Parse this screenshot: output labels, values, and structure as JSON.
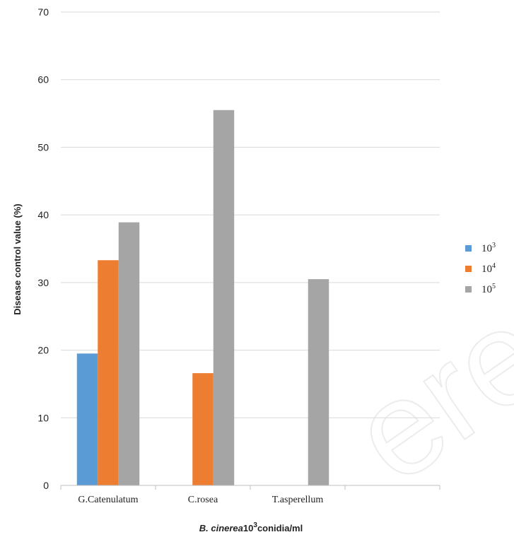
{
  "chart_data": {
    "type": "bar",
    "categories": [
      "G.Catenulatum",
      "C.rosea",
      "T.asperellum"
    ],
    "series": [
      {
        "name": "10^3",
        "base": "10",
        "exp": "3",
        "color": "#5b9bd5",
        "values": [
          19.5,
          0,
          0
        ]
      },
      {
        "name": "10^4",
        "base": "10",
        "exp": "4",
        "color": "#ed7d31",
        "values": [
          33.3,
          16.6,
          0
        ]
      },
      {
        "name": "10^5",
        "base": "10",
        "exp": "5",
        "color": "#a5a5a5",
        "values": [
          38.9,
          55.5,
          30.5
        ]
      }
    ],
    "ylabel": "Disease control value (%)",
    "xlabel": {
      "italic": "B. cinerea",
      "base": "10",
      "exp": "3",
      "suffix": "conidia/ml"
    },
    "ylim": [
      0,
      70
    ],
    "yticks": [
      "0",
      "10",
      "20",
      "30",
      "40",
      "50",
      "60",
      "70"
    ],
    "grid": true,
    "legend_position": "right"
  }
}
